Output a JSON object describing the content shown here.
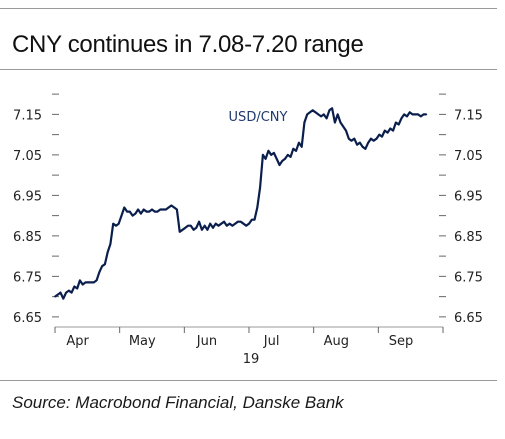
{
  "title": "CNY continues in 7.08-7.20 range",
  "source": "Source: Macrobond Financial, Danske Bank",
  "chart_data": {
    "type": "line",
    "series_label": "USD/CNY",
    "x_tick_labels": [
      "Apr",
      "May",
      "Jun",
      "Jul",
      "Aug",
      "Sep"
    ],
    "year_label": "19",
    "y_ticks": [
      6.65,
      6.75,
      6.85,
      6.95,
      7.05,
      7.15
    ],
    "y_tick_labels": [
      "6.65",
      "6.75",
      "6.85",
      "6.95",
      "7.05",
      "7.15"
    ],
    "ylim": [
      6.625,
      7.225
    ],
    "xlim": [
      0,
      28
    ],
    "x_axis": "weeks",
    "grid": false,
    "colors": {
      "line": "#0b1f4d",
      "frame": "#9a9a9a",
      "text": "#222222"
    },
    "x": [
      0,
      0.2,
      0.4,
      0.6,
      0.8,
      1.0,
      1.2,
      1.4,
      1.6,
      1.8,
      2.0,
      2.2,
      2.4,
      2.6,
      2.8,
      3.0,
      3.2,
      3.4,
      3.6,
      3.8,
      4.0,
      4.2,
      4.4,
      4.6,
      4.8,
      5.0,
      5.2,
      5.4,
      5.6,
      5.8,
      6.0,
      6.2,
      6.4,
      6.6,
      6.8,
      7.0,
      7.2,
      7.4,
      7.6,
      7.8,
      8.0,
      8.2,
      8.4,
      8.6,
      8.8,
      9.0,
      9.2,
      9.4,
      9.6,
      9.8,
      10.0,
      10.2,
      10.4,
      10.6,
      10.8,
      11.0,
      11.2,
      11.4,
      11.6,
      11.8,
      12.0,
      12.2,
      12.4,
      12.6,
      12.8,
      13.0,
      13.2,
      13.4,
      13.6,
      13.8,
      14.0,
      14.2,
      14.4,
      14.6,
      14.8,
      15.0,
      15.2,
      15.4,
      15.6,
      15.8,
      16.0,
      16.2,
      16.4,
      16.6,
      16.8,
      17.0,
      17.2,
      17.4,
      17.6,
      17.8,
      18.0,
      18.2,
      18.4,
      18.6,
      18.8,
      19.0,
      19.2,
      19.4,
      19.6,
      19.8,
      20.0,
      20.2,
      20.4,
      20.6,
      20.8,
      21.0,
      21.2,
      21.4,
      21.6,
      21.8,
      22.0,
      22.2,
      22.4,
      22.6,
      22.8,
      23.0,
      23.2,
      23.4,
      23.6,
      23.8,
      24.0,
      24.2,
      24.4,
      24.6,
      24.8,
      25.0,
      25.2,
      25.4,
      25.6,
      25.8,
      26.0,
      26.2,
      26.4,
      26.6,
      26.8
    ],
    "values": [
      6.7,
      6.705,
      6.71,
      6.695,
      6.71,
      6.715,
      6.71,
      6.725,
      6.72,
      6.74,
      6.73,
      6.735,
      6.735,
      6.735,
      6.735,
      6.74,
      6.76,
      6.775,
      6.78,
      6.81,
      6.83,
      6.88,
      6.875,
      6.88,
      6.9,
      6.92,
      6.91,
      6.91,
      6.9,
      6.905,
      6.915,
      6.905,
      6.915,
      6.91,
      6.91,
      6.915,
      6.91,
      6.91,
      6.915,
      6.915,
      6.915,
      6.92,
      6.925,
      6.92,
      6.915,
      6.86,
      6.865,
      6.87,
      6.875,
      6.875,
      6.865,
      6.87,
      6.885,
      6.865,
      6.875,
      6.865,
      6.88,
      6.87,
      6.88,
      6.875,
      6.88,
      6.885,
      6.875,
      6.88,
      6.875,
      6.88,
      6.885,
      6.885,
      6.88,
      6.875,
      6.88,
      6.89,
      6.89,
      6.92,
      6.97,
      7.05,
      7.04,
      7.06,
      7.05,
      7.055,
      7.04,
      7.025,
      7.035,
      7.04,
      7.05,
      7.045,
      7.065,
      7.06,
      7.08,
      7.07,
      7.13,
      7.15,
      7.155,
      7.16,
      7.155,
      7.15,
      7.145,
      7.15,
      7.14,
      7.16,
      7.165,
      7.13,
      7.15,
      7.13,
      7.12,
      7.11,
      7.09,
      7.085,
      7.09,
      7.075,
      7.08,
      7.07,
      7.065,
      7.08,
      7.09,
      7.085,
      7.09,
      7.1,
      7.095,
      7.11,
      7.105,
      7.115,
      7.11,
      7.13,
      7.125,
      7.14,
      7.15,
      7.145,
      7.155,
      7.15,
      7.15,
      7.15,
      7.145,
      7.15,
      7.15
    ]
  }
}
